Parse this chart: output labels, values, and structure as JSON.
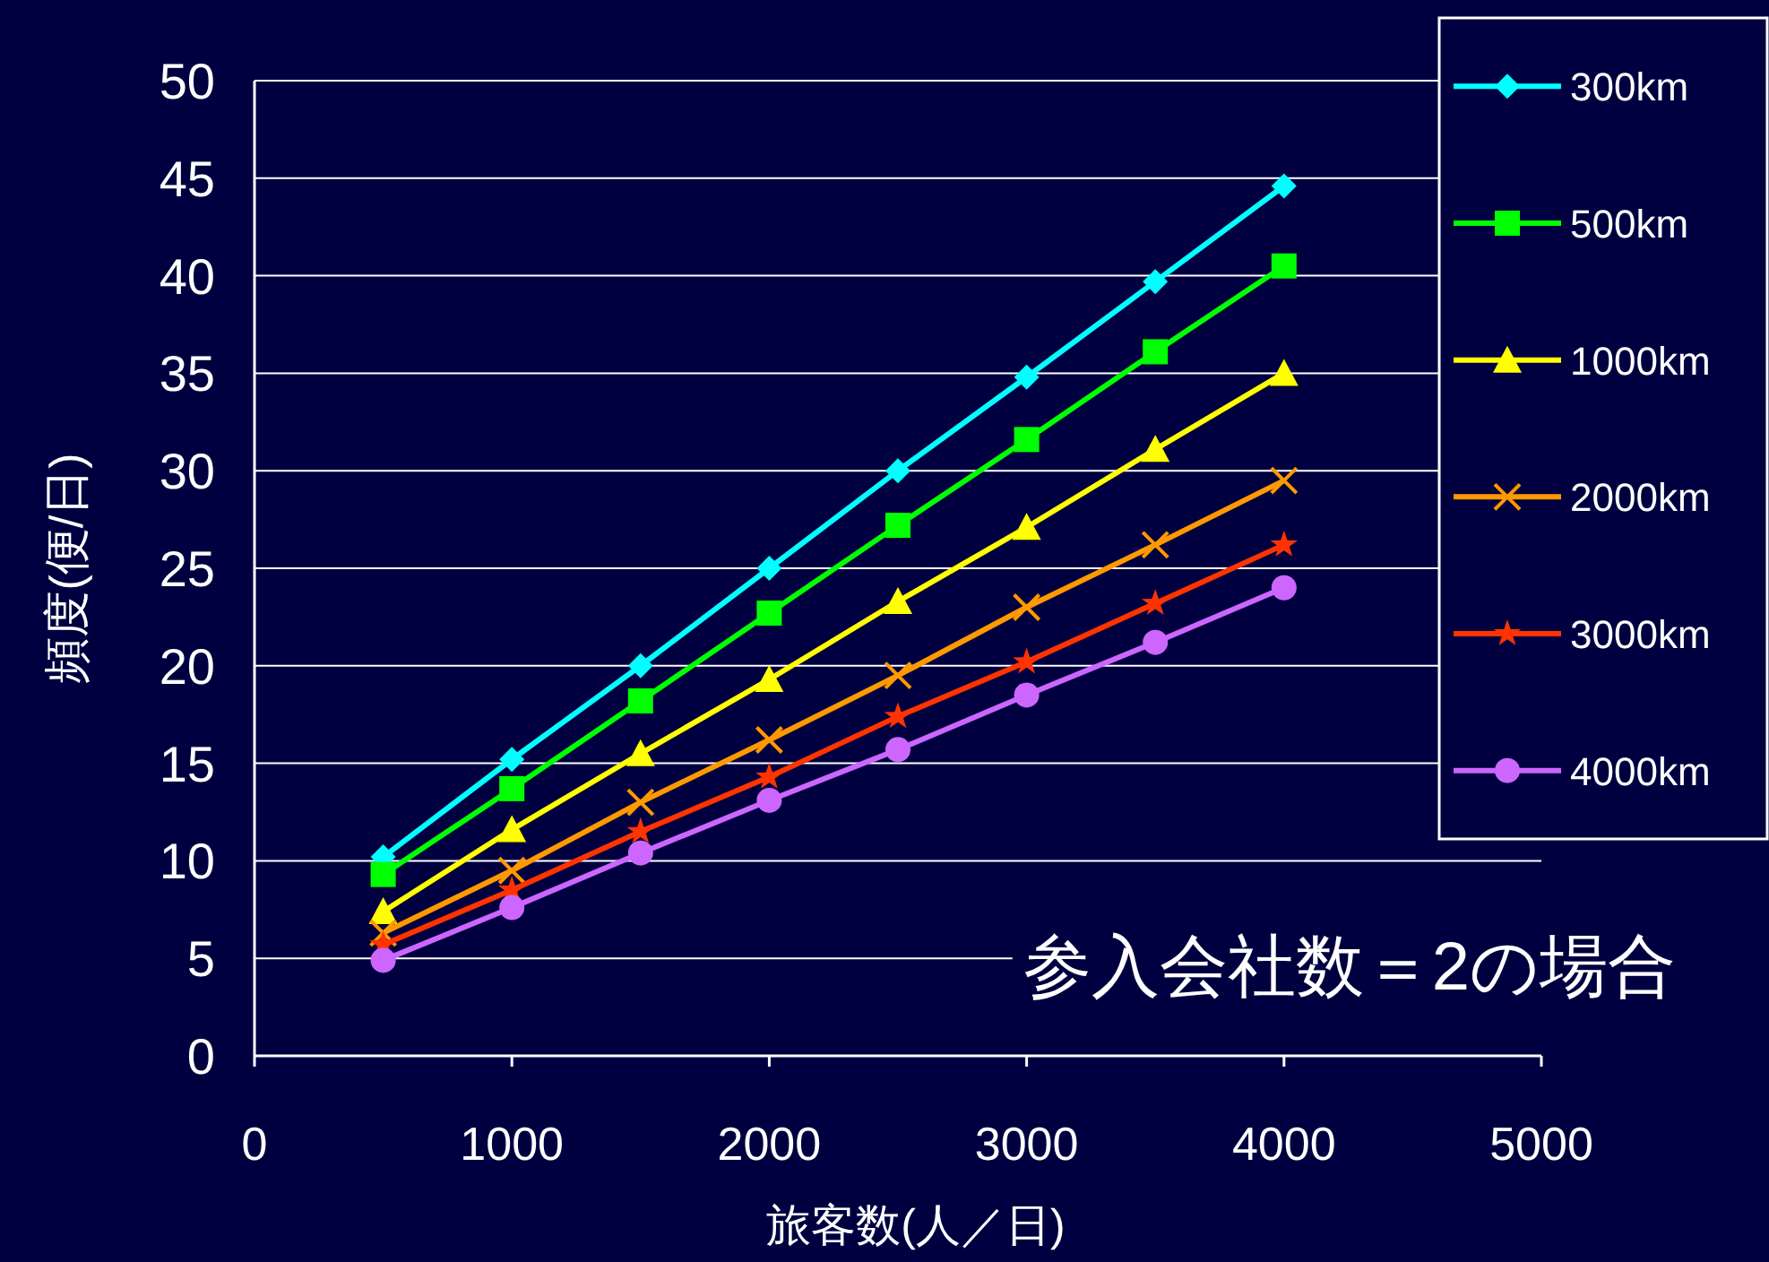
{
  "chart_data": {
    "type": "line",
    "xlabel": "旅客数(人／日)",
    "ylabel": "頻度(便/日)",
    "x": [
      500,
      1000,
      1500,
      2000,
      2500,
      3000,
      3500,
      4000
    ],
    "xlim": [
      0,
      5000
    ],
    "xticks": [
      0,
      1000,
      2000,
      3000,
      4000,
      5000
    ],
    "ylim": [
      0,
      50
    ],
    "yticks": [
      0,
      5,
      10,
      15,
      20,
      25,
      30,
      35,
      40,
      45,
      50
    ],
    "grid": "y",
    "legend": "top right",
    "annotations": [
      "参入会社数＝2の場合"
    ],
    "series": [
      {
        "name": "300km",
        "color": "#00ffff",
        "marker": "diamond",
        "values": [
          10.2,
          15.2,
          20.0,
          25.0,
          30.0,
          34.8,
          39.7,
          44.6
        ]
      },
      {
        "name": "500km",
        "color": "#00ff00",
        "marker": "square",
        "values": [
          9.3,
          13.7,
          18.2,
          22.7,
          27.2,
          31.6,
          36.1,
          40.5
        ]
      },
      {
        "name": "1000km",
        "color": "#ffff00",
        "marker": "triangle",
        "values": [
          7.4,
          11.6,
          15.5,
          19.3,
          23.3,
          27.1,
          31.1,
          35.0
        ]
      },
      {
        "name": "2000km",
        "color": "#ff9900",
        "marker": "cross",
        "values": [
          6.3,
          9.5,
          13.0,
          16.2,
          19.5,
          23.0,
          26.2,
          29.5
        ]
      },
      {
        "name": "3000km",
        "color": "#ff3300",
        "marker": "star",
        "values": [
          5.7,
          8.5,
          11.5,
          14.3,
          17.4,
          20.2,
          23.2,
          26.2
        ]
      },
      {
        "name": "4000km",
        "color": "#cc66ff",
        "marker": "circle",
        "values": [
          4.9,
          7.6,
          10.4,
          13.1,
          15.7,
          18.5,
          21.2,
          24.0
        ]
      }
    ]
  }
}
